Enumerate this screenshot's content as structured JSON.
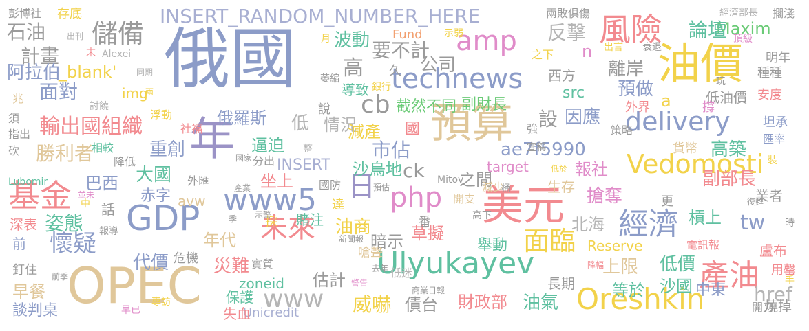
{
  "words": [
    {
      "text": "俄國",
      "color": "#8C9CC8"
    },
    {
      "text": "油價",
      "color": "#F2D24A"
    },
    {
      "text": "預算",
      "color": "#E0C79A"
    },
    {
      "text": "美元",
      "color": "#F28A8F"
    },
    {
      "text": "年",
      "color": "#9B93C6"
    },
    {
      "text": "OPEC",
      "color": "#E0C79A"
    },
    {
      "text": "GDP",
      "color": "#8C9CC8"
    },
    {
      "text": "Ulyukayev",
      "color": "#5FC0A0"
    },
    {
      "text": "INSERT_RANDOM_NUMBER_HERE",
      "color": "#A8AFD2"
    },
    {
      "text": "technews",
      "color": "#8C9CC8"
    },
    {
      "text": "delivery",
      "color": "#8C9CC8"
    },
    {
      "text": "Vedomosti",
      "color": "#F2D24A"
    },
    {
      "text": "Oreshkin",
      "color": "#F2D24A"
    },
    {
      "text": "www5",
      "color": "#8C9CC8"
    },
    {
      "text": "php",
      "color": "#E08CC9"
    },
    {
      "text": "風險",
      "color": "#F28A8F"
    },
    {
      "text": "儲備",
      "color": "#9A9A9A"
    },
    {
      "text": "基金",
      "color": "#F28A8F"
    },
    {
      "text": "經濟",
      "color": "#8C9CC8"
    },
    {
      "text": "產油",
      "color": "#F28A8F"
    },
    {
      "text": "未來",
      "color": "#F28A8F"
    },
    {
      "text": "面臨",
      "color": "#F2D24A"
    },
    {
      "text": "懷疑",
      "color": "#8C9CC8"
    },
    {
      "text": "www",
      "color": "#B5B5B5"
    },
    {
      "text": "amp",
      "color": "#E08CC9"
    },
    {
      "text": "cb",
      "color": "#9A9A9A"
    },
    {
      "text": "日",
      "color": "#9B93C6"
    },
    {
      "text": "輸出國組織",
      "color": "#F28A8F"
    },
    {
      "text": "ae7f5990",
      "color": "#8C9CC8"
    },
    {
      "text": "tw",
      "color": "#8C9CC8"
    },
    {
      "text": "href",
      "color": "#B5B5B5"
    },
    {
      "text": "ck",
      "color": "#9A9A9A"
    },
    {
      "text": "zoneid",
      "color": "#5FC0A0"
    },
    {
      "text": "INSERT",
      "color": "#A8AFD2"
    },
    {
      "text": "Maxim",
      "color": "#6BCB77"
    },
    {
      "text": "Reserve",
      "color": "#F2D24A"
    },
    {
      "text": "Unicredit",
      "color": "#A8AFD2"
    },
    {
      "text": "target",
      "color": "#E08CC9"
    },
    {
      "text": "avw",
      "color": "#E0C79A"
    },
    {
      "text": "src",
      "color": "#5FC0A0"
    },
    {
      "text": "img",
      "color": "#F2D24A"
    },
    {
      "text": "_blank'",
      "color": "#F2D24A"
    },
    {
      "text": "Fund",
      "color": "#F2A070"
    },
    {
      "text": "Alexei",
      "color": "#B5B5B5"
    },
    {
      "text": "Mitov",
      "color": "#9A9A9A"
    },
    {
      "text": "Lubomir",
      "color": "#5FC0A0"
    },
    {
      "text": "n",
      "color": "#E08CC9"
    },
    {
      "text": "a",
      "color": "#F2D24A"
    },
    {
      "text": "石油",
      "color": "#9A9A9A"
    },
    {
      "text": "計畫",
      "color": "#9A9A9A"
    },
    {
      "text": "阿拉伯",
      "color": "#8C9CC8"
    },
    {
      "text": "面對",
      "color": "#8C9CC8"
    },
    {
      "text": "波動",
      "color": "#5FC0A0"
    },
    {
      "text": "要不計",
      "color": "#9A9A9A"
    },
    {
      "text": "公司",
      "color": "#9A9A9A"
    },
    {
      "text": "反擊",
      "color": "#B5B5B5"
    },
    {
      "text": "論壇",
      "color": "#5FC0A0"
    },
    {
      "text": "離岸",
      "color": "#9A9A9A"
    },
    {
      "text": "預做",
      "color": "#8C9CC8"
    },
    {
      "text": "高",
      "color": "#9A9A9A"
    },
    {
      "text": "截然不同",
      "color": "#6BCB77"
    },
    {
      "text": "副財長",
      "color": "#6BCB77"
    },
    {
      "text": "俄羅斯",
      "color": "#8C9CC8"
    },
    {
      "text": "勝利者",
      "color": "#E0C79A"
    },
    {
      "text": "重創",
      "color": "#8C9CC8"
    },
    {
      "text": "逼迫",
      "color": "#5FC0A0"
    },
    {
      "text": "情況",
      "color": "#B5B5B5"
    },
    {
      "text": "減產",
      "color": "#F2D24A"
    },
    {
      "text": "市佔",
      "color": "#8C9CC8"
    },
    {
      "text": "沙烏地",
      "color": "#5FC0A0"
    },
    {
      "text": "大國",
      "color": "#5FC0A0"
    },
    {
      "text": "巴西",
      "color": "#8C9CC8"
    },
    {
      "text": "坐上",
      "color": "#F28A8F"
    },
    {
      "text": "之間",
      "color": "#9A9A9A"
    },
    {
      "text": "報社",
      "color": "#E08CC9"
    },
    {
      "text": "高築",
      "color": "#5FC0A0"
    },
    {
      "text": "副部長",
      "color": "#F28A8F"
    },
    {
      "text": "搶奪",
      "color": "#E08CC9"
    },
    {
      "text": "姿態",
      "color": "#5FC0A0"
    },
    {
      "text": "赤字",
      "color": "#8C9CC8"
    },
    {
      "text": "油商",
      "color": "#F2D24A"
    },
    {
      "text": "草擬",
      "color": "#F28A8F"
    },
    {
      "text": "北海",
      "color": "#B5B5B5"
    },
    {
      "text": "槓上",
      "color": "#5FC0A0"
    },
    {
      "text": "代價",
      "color": "#8C9CC8"
    },
    {
      "text": "年代",
      "color": "#E0C79A"
    },
    {
      "text": "暗示",
      "color": "#9A9A9A"
    },
    {
      "text": "舉動",
      "color": "#5FC0A0"
    },
    {
      "text": "上限",
      "color": "#E0C79A"
    },
    {
      "text": "低價",
      "color": "#5FC0A0"
    },
    {
      "text": "災難",
      "color": "#F28A8F"
    },
    {
      "text": "估計",
      "color": "#9A9A9A"
    },
    {
      "text": "威嚇",
      "color": "#F2D24A"
    },
    {
      "text": "債台",
      "color": "#9A9A9A"
    },
    {
      "text": "財政部",
      "color": "#F28A8F"
    },
    {
      "text": "油氣",
      "color": "#5FC0A0"
    },
    {
      "text": "等於",
      "color": "#5FC0A0"
    },
    {
      "text": "沙國",
      "color": "#5FC0A0"
    },
    {
      "text": "中東",
      "color": "#8C9CC8"
    },
    {
      "text": "早餐",
      "color": "#E0C79A"
    },
    {
      "text": "談判桌",
      "color": "#8C9CC8"
    },
    {
      "text": "保護",
      "color": "#5FC0A0"
    },
    {
      "text": "失血",
      "color": "#F28A8F"
    },
    {
      "text": "彭博社",
      "color": "#9A9A9A"
    },
    {
      "text": "存底",
      "color": "#F2D24A"
    },
    {
      "text": "兩敗俱傷",
      "color": "#9A9A9A"
    },
    {
      "text": "經濟部長",
      "color": "#B5B5B5"
    },
    {
      "text": "擱淺",
      "color": "#9A9A9A"
    },
    {
      "text": "明年",
      "color": "#9A9A9A"
    },
    {
      "text": "種種",
      "color": "#9A9A9A"
    },
    {
      "text": "安度",
      "color": "#F28A8F"
    },
    {
      "text": "低油價",
      "color": "#9A9A9A"
    },
    {
      "text": "坦承",
      "color": "#8C9CC8"
    },
    {
      "text": "匯率",
      "color": "#8C9CC8"
    },
    {
      "text": "業者",
      "color": "#9A9A9A"
    },
    {
      "text": "設",
      "color": "#9A9A9A"
    },
    {
      "text": "因應",
      "color": "#8C9CC8"
    },
    {
      "text": "貨幣",
      "color": "#E0C79A"
    },
    {
      "text": "生存",
      "color": "#E0C79A"
    },
    {
      "text": "低",
      "color": "#B5B5B5"
    },
    {
      "text": "國",
      "color": "#F28A8F"
    },
    {
      "text": "浮動",
      "color": "#F2D24A"
    },
    {
      "text": "相較",
      "color": "#5FC0A0"
    },
    {
      "text": "降低",
      "color": "#9A9A9A"
    },
    {
      "text": "外匯",
      "color": "#9A9A9A"
    },
    {
      "text": "話",
      "color": "#9A9A9A"
    },
    {
      "text": "深表",
      "color": "#F28A8F"
    },
    {
      "text": "前",
      "color": "#8C9CC8"
    },
    {
      "text": "釘住",
      "color": "#9A9A9A"
    },
    {
      "text": "指出",
      "color": "#9A9A9A"
    },
    {
      "text": "須",
      "color": "#9A9A9A"
    },
    {
      "text": "砍",
      "color": "#9A9A9A"
    },
    {
      "text": "兆",
      "color": "#E0C79A"
    },
    {
      "text": "導致",
      "color": "#5FC0A0"
    },
    {
      "text": "久",
      "color": "#9A9A9A"
    },
    {
      "text": "西方",
      "color": "#9A9A9A"
    },
    {
      "text": "外界",
      "color": "#F28A8F"
    },
    {
      "text": "撐",
      "color": "#E08CC9"
    },
    {
      "text": "賭注",
      "color": "#5FC0A0"
    },
    {
      "text": "番",
      "color": "#9A9A9A"
    },
    {
      "text": "嗆聲",
      "color": "#E0C79A"
    },
    {
      "text": "危機",
      "color": "#9A9A9A"
    },
    {
      "text": "實質",
      "color": "#9A9A9A"
    },
    {
      "text": "低迷",
      "color": "#B5B5B5"
    },
    {
      "text": "長期",
      "color": "#9A9A9A"
    },
    {
      "text": "燒掉",
      "color": "#9A9A9A"
    },
    {
      "text": "盧布",
      "color": "#F28A8F"
    },
    {
      "text": "用罄",
      "color": "#F28A8F"
    },
    {
      "text": "開刀",
      "color": "#9A9A9A"
    },
    {
      "text": "電訊報",
      "color": "#F28A8F"
    },
    {
      "text": "更",
      "color": "#9A9A9A"
    },
    {
      "text": "減少",
      "color": "#E0C79A"
    },
    {
      "text": "開支",
      "color": "#E0C79A"
    },
    {
      "text": "達",
      "color": "#F2D24A"
    },
    {
      "text": "採",
      "color": "#F2D24A"
    },
    {
      "text": "國防",
      "color": "#9A9A9A"
    },
    {
      "text": "分出",
      "color": "#9A9A9A"
    },
    {
      "text": "社福",
      "color": "#F28A8F"
    },
    {
      "text": "策略",
      "color": "#9A9A9A"
    },
    {
      "text": "說",
      "color": "#9A9A9A"
    },
    {
      "text": "月",
      "color": "#F2D24A"
    },
    {
      "text": "之下",
      "color": "#F2D24A"
    },
    {
      "text": "出刊",
      "color": "#B5B5B5"
    },
    {
      "text": "示弱",
      "color": "#F2D24A"
    },
    {
      "text": "末",
      "color": "#F28A8F"
    },
    {
      "text": "同期",
      "color": "#B5B5B5"
    },
    {
      "text": "萎縮",
      "color": "#9A9A9A"
    },
    {
      "text": "銀行",
      "color": "#F2D24A"
    },
    {
      "text": "出言",
      "color": "#F2D24A"
    },
    {
      "text": "衰退",
      "color": "#9A9A9A"
    },
    {
      "text": "頂級",
      "color": "#E08CC9"
    },
    {
      "text": "玩",
      "color": "#9A9A9A"
    },
    {
      "text": "強",
      "color": "#9A9A9A"
    },
    {
      "text": "宣稱",
      "color": "#9A9A9A"
    },
    {
      "text": "裝",
      "color": "#F2D24A"
    },
    {
      "text": "討饒",
      "color": "#B5B5B5"
    },
    {
      "text": "國家",
      "color": "#9A9A9A"
    },
    {
      "text": "整",
      "color": "#B5B5B5"
    },
    {
      "text": "產業",
      "color": "#9A9A9A"
    },
    {
      "text": "預估",
      "color": "#9A9A9A"
    },
    {
      "text": "桶",
      "color": "#9A9A9A"
    },
    {
      "text": "低於",
      "color": "#F2D24A"
    },
    {
      "text": "並未",
      "color": "#E08CC9"
    },
    {
      "text": "中",
      "color": "#F2D24A"
    },
    {
      "text": "報導",
      "color": "#9A9A9A"
    },
    {
      "text": "季",
      "color": "#9A9A9A"
    },
    {
      "text": "示警",
      "color": "#9A9A9A"
    },
    {
      "text": "高下",
      "color": "#9A9A9A"
    },
    {
      "text": "新聞報",
      "color": "#9A9A9A"
    },
    {
      "text": "去年",
      "color": "#9A9A9A"
    },
    {
      "text": "警告",
      "color": "#E08CC9"
    },
    {
      "text": "商業日報",
      "color": "#9A9A9A"
    },
    {
      "text": "專訪",
      "color": "#F2D24A"
    },
    {
      "text": "前季",
      "color": "#9A9A9A"
    },
    {
      "text": "早已",
      "color": "#E08CC9"
    },
    {
      "text": "降幅",
      "color": "#F28A8F"
    },
    {
      "text": "復甦",
      "color": "#9A9A9A"
    },
    {
      "text": "時",
      "color": "#9A9A9A"
    },
    {
      "text": "手",
      "color": "#F2D24A"
    },
    {
      "text": "兩",
      "color": "#F2D24A"
    }
  ]
}
